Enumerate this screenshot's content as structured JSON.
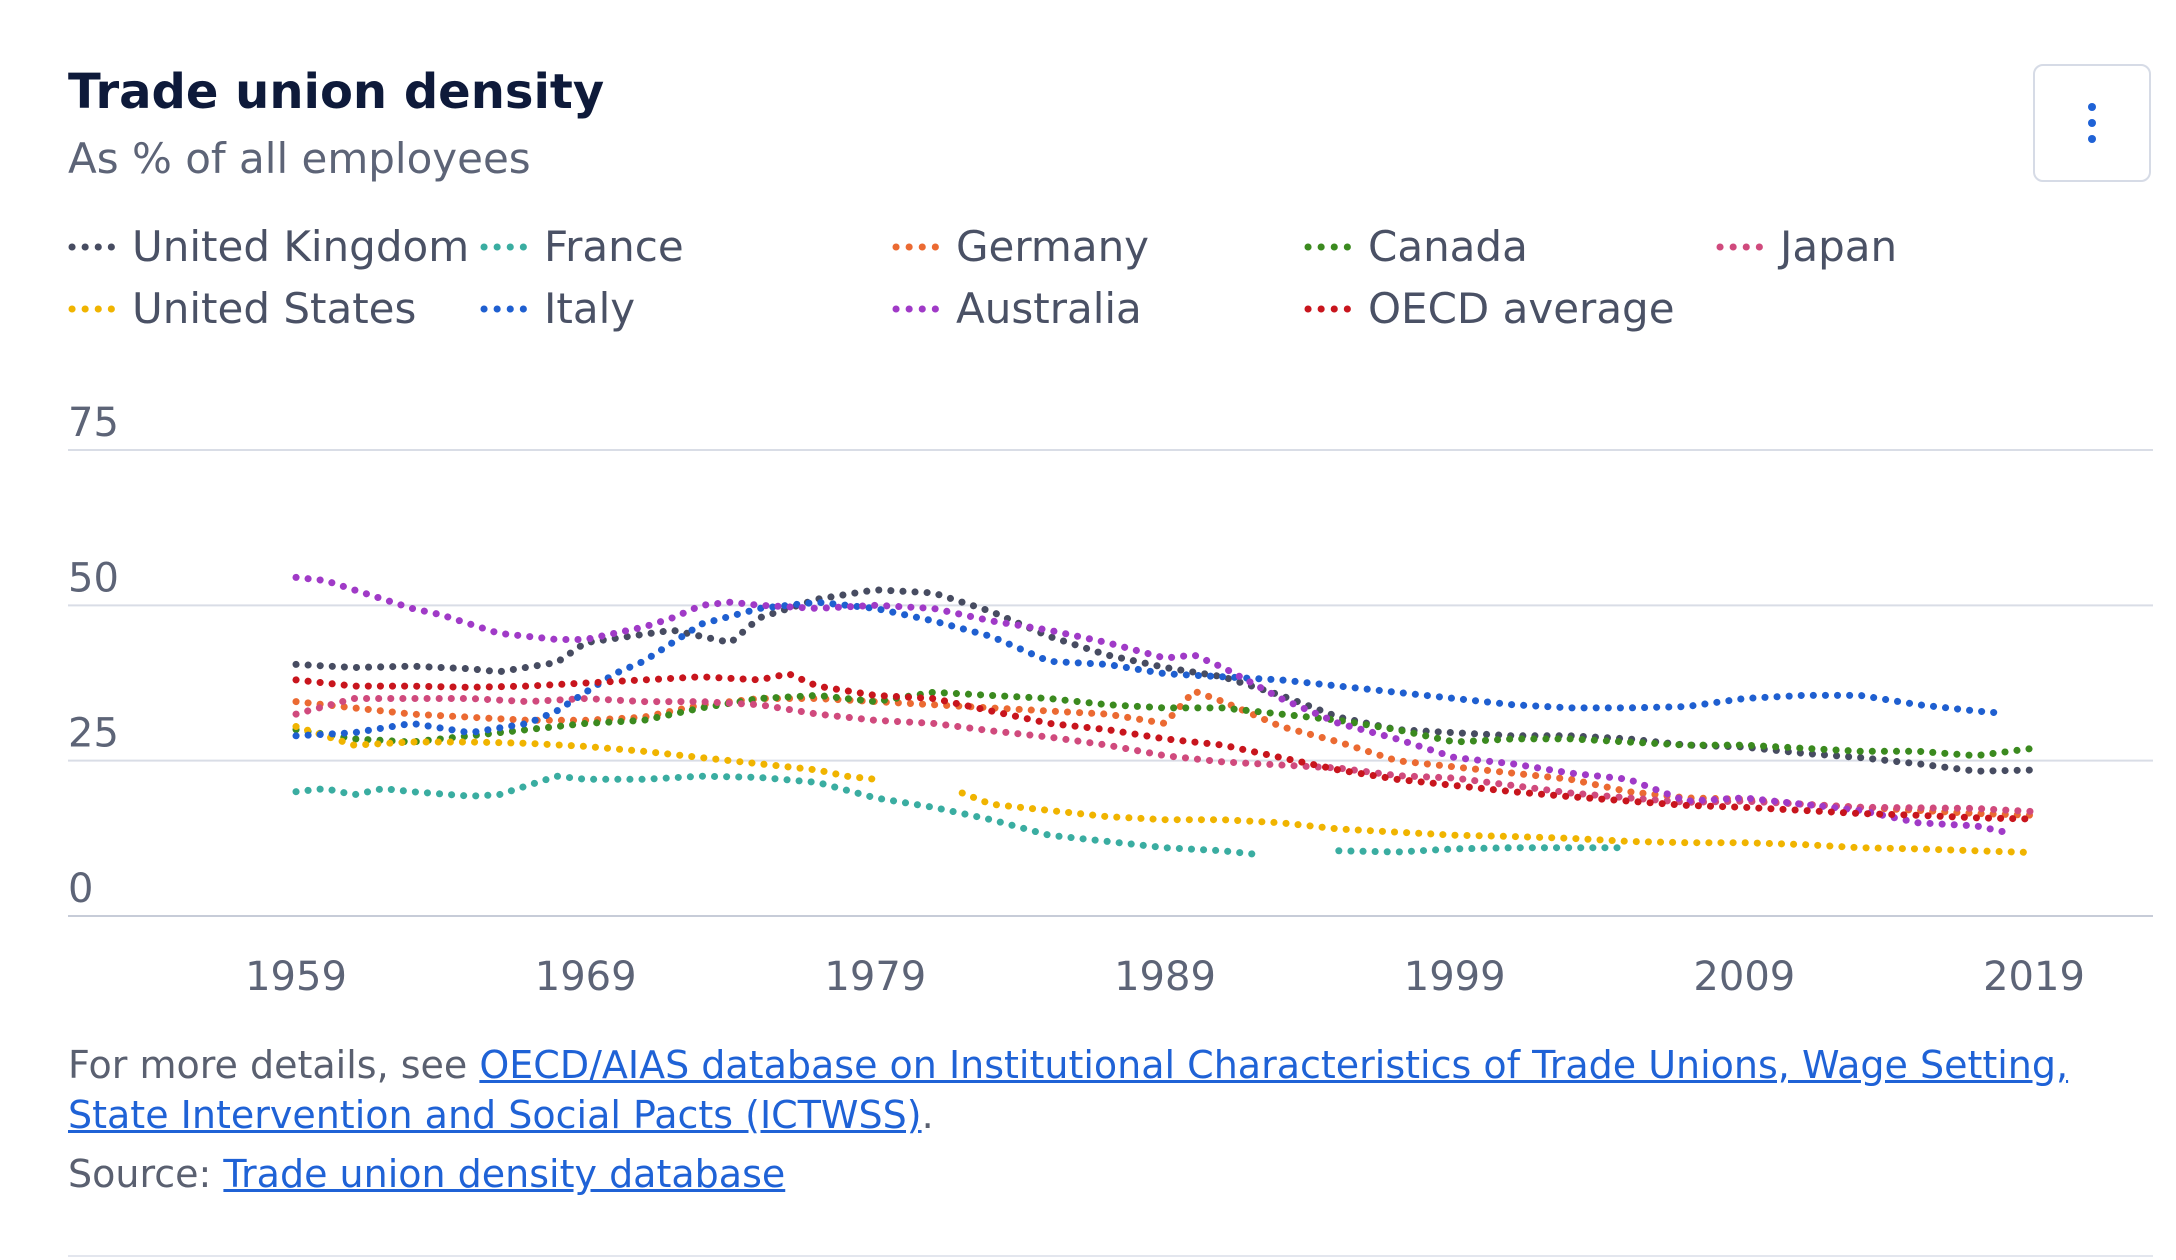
{
  "header": {
    "title": "Trade union density",
    "subtitle": "As % of all employees",
    "menu_icon": "kebab-menu-icon"
  },
  "footer": {
    "details_prefix": "For more details, see ",
    "details_link": "OECD/AIAS database on Institutional Characteristics of Trade Unions, Wage Setting, State Intervention and Social Pacts (ICTWSS)",
    "details_suffix": ".",
    "source_prefix": "Source: ",
    "source_link": "Trade union density database"
  },
  "chart_data": {
    "type": "line",
    "title": "Trade union density",
    "subtitle": "As % of all employees",
    "xlabel": "",
    "ylabel": "",
    "ylim": [
      0,
      75
    ],
    "xlim": [
      1959,
      2019
    ],
    "yticks": [
      "0",
      "25",
      "50",
      "75"
    ],
    "xticks": [
      "1959",
      "1969",
      "1979",
      "1989",
      "1999",
      "2009",
      "2019"
    ],
    "grid": true,
    "legend_position": "top",
    "series": [
      {
        "name": "United Kingdom",
        "color": "#474c61",
        "points": [
          [
            1959,
            40.5
          ],
          [
            1961,
            40
          ],
          [
            1963,
            40.2
          ],
          [
            1965,
            39.8
          ],
          [
            1966,
            39.3
          ],
          [
            1968,
            40.8
          ],
          [
            1969,
            44
          ],
          [
            1972,
            46
          ],
          [
            1974,
            44
          ],
          [
            1975,
            48
          ],
          [
            1977,
            51
          ],
          [
            1979,
            52.5
          ],
          [
            1981,
            52
          ],
          [
            1983,
            49
          ],
          [
            1985,
            45
          ],
          [
            1987,
            42
          ],
          [
            1989,
            40
          ],
          [
            1991,
            38.5
          ],
          [
            1993,
            35.5
          ],
          [
            1995,
            32
          ],
          [
            1997,
            30
          ],
          [
            1999,
            29.5
          ],
          [
            2001,
            29
          ],
          [
            2003,
            29
          ],
          [
            2005,
            28.5
          ],
          [
            2007,
            27.5
          ],
          [
            2009,
            27.2
          ],
          [
            2011,
            26.2
          ],
          [
            2013,
            25.5
          ],
          [
            2015,
            24.5
          ],
          [
            2017,
            23.3
          ],
          [
            2019,
            23.5
          ]
        ]
      },
      {
        "name": "France",
        "color": "#3aada1",
        "segments": [
          [
            [
              1959,
              20
            ],
            [
              1960,
              20.5
            ],
            [
              1961,
              19.5
            ],
            [
              1962,
              20.5
            ],
            [
              1963,
              20
            ],
            [
              1965,
              19.3
            ],
            [
              1966,
              19.5
            ],
            [
              1968,
              22.5
            ],
            [
              1969,
              22
            ],
            [
              1971,
              22
            ],
            [
              1973,
              22.5
            ],
            [
              1975,
              22.3
            ],
            [
              1977,
              21.5
            ],
            [
              1979,
              19
            ],
            [
              1981,
              17.5
            ],
            [
              1983,
              15.5
            ],
            [
              1985,
              13
            ],
            [
              1987,
              12
            ],
            [
              1989,
              11
            ],
            [
              1991,
              10.5
            ],
            [
              1992,
              10
            ]
          ],
          [
            [
              1995,
              10.5
            ],
            [
              1997,
              10.3
            ],
            [
              1999,
              10.8
            ],
            [
              2001,
              11
            ],
            [
              2003,
              11
            ],
            [
              2005,
              11
            ]
          ]
        ]
      },
      {
        "name": "Germany",
        "color": "#eb6a32",
        "points": [
          [
            1959,
            34.5
          ],
          [
            1961,
            33.5
          ],
          [
            1963,
            32.5
          ],
          [
            1965,
            32
          ],
          [
            1967,
            31.5
          ],
          [
            1969,
            31.5
          ],
          [
            1971,
            32
          ],
          [
            1973,
            34
          ],
          [
            1975,
            35
          ],
          [
            1977,
            35
          ],
          [
            1979,
            34.5
          ],
          [
            1981,
            34
          ],
          [
            1983,
            33.5
          ],
          [
            1985,
            33
          ],
          [
            1987,
            32.5
          ],
          [
            1989,
            31
          ],
          [
            1990,
            36.2
          ],
          [
            1991,
            34.5
          ],
          [
            1993,
            30.5
          ],
          [
            1995,
            28
          ],
          [
            1997,
            25
          ],
          [
            1999,
            24
          ],
          [
            2001,
            23
          ],
          [
            2003,
            22
          ],
          [
            2005,
            20
          ],
          [
            2007,
            19
          ],
          [
            2009,
            18.8
          ],
          [
            2011,
            18
          ],
          [
            2013,
            17.5
          ],
          [
            2015,
            17
          ],
          [
            2017,
            16.5
          ],
          [
            2019,
            16.2
          ]
        ]
      },
      {
        "name": "Canada",
        "color": "#3b8a1f",
        "points": [
          [
            1959,
            30
          ],
          [
            1961,
            28.5
          ],
          [
            1963,
            28
          ],
          [
            1965,
            29
          ],
          [
            1967,
            30
          ],
          [
            1969,
            31
          ],
          [
            1971,
            31.5
          ],
          [
            1973,
            33.5
          ],
          [
            1975,
            35
          ],
          [
            1977,
            35.5
          ],
          [
            1979,
            34.5
          ],
          [
            1981,
            36
          ],
          [
            1983,
            35.5
          ],
          [
            1985,
            35
          ],
          [
            1987,
            34
          ],
          [
            1989,
            33.5
          ],
          [
            1991,
            33.5
          ],
          [
            1993,
            32.5
          ],
          [
            1995,
            31.5
          ],
          [
            1997,
            30
          ],
          [
            1999,
            28
          ],
          [
            2001,
            28.5
          ],
          [
            2003,
            28.5
          ],
          [
            2005,
            28
          ],
          [
            2007,
            27.5
          ],
          [
            2009,
            27.5
          ],
          [
            2011,
            27
          ],
          [
            2013,
            26.5
          ],
          [
            2015,
            26.5
          ],
          [
            2017,
            25.8
          ],
          [
            2019,
            27
          ]
        ]
      },
      {
        "name": "Japan",
        "color": "#d04a7d",
        "points": [
          [
            1959,
            32.5
          ],
          [
            1961,
            35
          ],
          [
            1963,
            35
          ],
          [
            1965,
            35
          ],
          [
            1967,
            34.5
          ],
          [
            1969,
            35
          ],
          [
            1971,
            34.5
          ],
          [
            1973,
            34.5
          ],
          [
            1975,
            34
          ],
          [
            1977,
            32.5
          ],
          [
            1979,
            31.5
          ],
          [
            1981,
            31
          ],
          [
            1983,
            29.8
          ],
          [
            1985,
            28.8
          ],
          [
            1987,
            27.5
          ],
          [
            1989,
            25.8
          ],
          [
            1991,
            24.8
          ],
          [
            1993,
            24.3
          ],
          [
            1995,
            23.8
          ],
          [
            1997,
            22.6
          ],
          [
            1999,
            22.2
          ],
          [
            2001,
            21
          ],
          [
            2003,
            19.8
          ],
          [
            2005,
            19
          ],
          [
            2007,
            18.3
          ],
          [
            2009,
            18.5
          ],
          [
            2011,
            18
          ],
          [
            2013,
            17.5
          ],
          [
            2015,
            17.4
          ],
          [
            2017,
            17.3
          ],
          [
            2019,
            16.8
          ]
        ]
      },
      {
        "name": "United States",
        "color": "#f0b400",
        "segments": [
          [
            [
              1959,
              30.5
            ],
            [
              1961,
              27.5
            ],
            [
              1963,
              28
            ],
            [
              1965,
              28
            ],
            [
              1967,
              27.8
            ],
            [
              1969,
              27.3
            ],
            [
              1971,
              26.5
            ],
            [
              1973,
              25.5
            ],
            [
              1975,
              24.5
            ],
            [
              1977,
              23.5
            ],
            [
              1978,
              22.5
            ],
            [
              1979,
              22
            ]
          ],
          [
            [
              1982,
              19.8
            ],
            [
              1983,
              18
            ],
            [
              1985,
              17
            ],
            [
              1987,
              16
            ],
            [
              1989,
              15.5
            ],
            [
              1991,
              15.5
            ],
            [
              1993,
              15
            ],
            [
              1995,
              14
            ],
            [
              1997,
              13.5
            ],
            [
              1999,
              13
            ],
            [
              2001,
              12.8
            ],
            [
              2003,
              12.5
            ],
            [
              2005,
              12
            ],
            [
              2007,
              11.8
            ],
            [
              2009,
              11.8
            ],
            [
              2011,
              11.5
            ],
            [
              2013,
              11
            ],
            [
              2015,
              10.8
            ],
            [
              2017,
              10.5
            ],
            [
              2019,
              10.2
            ]
          ]
        ]
      },
      {
        "name": "Italy",
        "color": "#1f5fd0",
        "points": [
          [
            1959,
            29
          ],
          [
            1961,
            29.5
          ],
          [
            1963,
            31
          ],
          [
            1965,
            29.5
          ],
          [
            1967,
            31
          ],
          [
            1968,
            33
          ],
          [
            1969,
            36
          ],
          [
            1970,
            39
          ],
          [
            1971,
            41
          ],
          [
            1972,
            44
          ],
          [
            1973,
            47
          ],
          [
            1975,
            49.5
          ],
          [
            1977,
            50.5
          ],
          [
            1979,
            49.5
          ],
          [
            1981,
            47.5
          ],
          [
            1983,
            45
          ],
          [
            1985,
            41
          ],
          [
            1987,
            40.5
          ],
          [
            1989,
            39
          ],
          [
            1991,
            38.5
          ],
          [
            1993,
            38
          ],
          [
            1995,
            37
          ],
          [
            1997,
            36
          ],
          [
            1999,
            35
          ],
          [
            2001,
            34
          ],
          [
            2003,
            33.5
          ],
          [
            2005,
            33.5
          ],
          [
            2007,
            33.7
          ],
          [
            2009,
            35
          ],
          [
            2011,
            35.5
          ],
          [
            2013,
            35.5
          ],
          [
            2015,
            34
          ],
          [
            2017,
            33
          ],
          [
            2018,
            32.6
          ]
        ]
      },
      {
        "name": "Australia",
        "color": "#a03ac7",
        "points": [
          [
            1959,
            54.5
          ],
          [
            1960,
            54
          ],
          [
            1961,
            52.5
          ],
          [
            1962,
            51
          ],
          [
            1963,
            49.5
          ],
          [
            1964,
            48.5
          ],
          [
            1965,
            47
          ],
          [
            1966,
            45.5
          ],
          [
            1967,
            45
          ],
          [
            1968,
            44.5
          ],
          [
            1969,
            44.5
          ],
          [
            1970,
            45.5
          ],
          [
            1971,
            46.5
          ],
          [
            1972,
            48
          ],
          [
            1973,
            50
          ],
          [
            1974,
            50.5
          ],
          [
            1975,
            50
          ],
          [
            1977,
            49.5
          ],
          [
            1979,
            50
          ],
          [
            1981,
            49.5
          ],
          [
            1983,
            47.5
          ],
          [
            1985,
            46
          ],
          [
            1987,
            44
          ],
          [
            1989,
            41.5
          ],
          [
            1990,
            42
          ],
          [
            1991,
            40
          ],
          [
            1993,
            35
          ],
          [
            1995,
            31
          ],
          [
            1997,
            28.5
          ],
          [
            1999,
            25.5
          ],
          [
            2001,
            24.5
          ],
          [
            2003,
            23
          ],
          [
            2005,
            22
          ],
          [
            2007,
            18.5
          ],
          [
            2009,
            19
          ],
          [
            2011,
            18
          ],
          [
            2013,
            17
          ],
          [
            2015,
            15
          ],
          [
            2017,
            14.5
          ],
          [
            2018,
            13.5
          ]
        ]
      },
      {
        "name": "OECD average",
        "color": "#c8151d",
        "points": [
          [
            1959,
            38
          ],
          [
            1961,
            37
          ],
          [
            1963,
            37
          ],
          [
            1965,
            36.8
          ],
          [
            1967,
            37
          ],
          [
            1969,
            37.5
          ],
          [
            1971,
            38
          ],
          [
            1973,
            38.5
          ],
          [
            1975,
            38
          ],
          [
            1976,
            39
          ],
          [
            1977,
            37
          ],
          [
            1979,
            35.5
          ],
          [
            1981,
            35
          ],
          [
            1983,
            33
          ],
          [
            1985,
            31
          ],
          [
            1987,
            30
          ],
          [
            1989,
            28.5
          ],
          [
            1991,
            27.5
          ],
          [
            1993,
            25.5
          ],
          [
            1995,
            23.5
          ],
          [
            1997,
            22
          ],
          [
            1999,
            21
          ],
          [
            2001,
            20
          ],
          [
            2003,
            19.2
          ],
          [
            2005,
            18.5
          ],
          [
            2007,
            17.8
          ],
          [
            2009,
            17.5
          ],
          [
            2011,
            17
          ],
          [
            2013,
            16.5
          ],
          [
            2015,
            16.2
          ],
          [
            2017,
            15.8
          ],
          [
            2019,
            15.6
          ]
        ]
      }
    ]
  }
}
